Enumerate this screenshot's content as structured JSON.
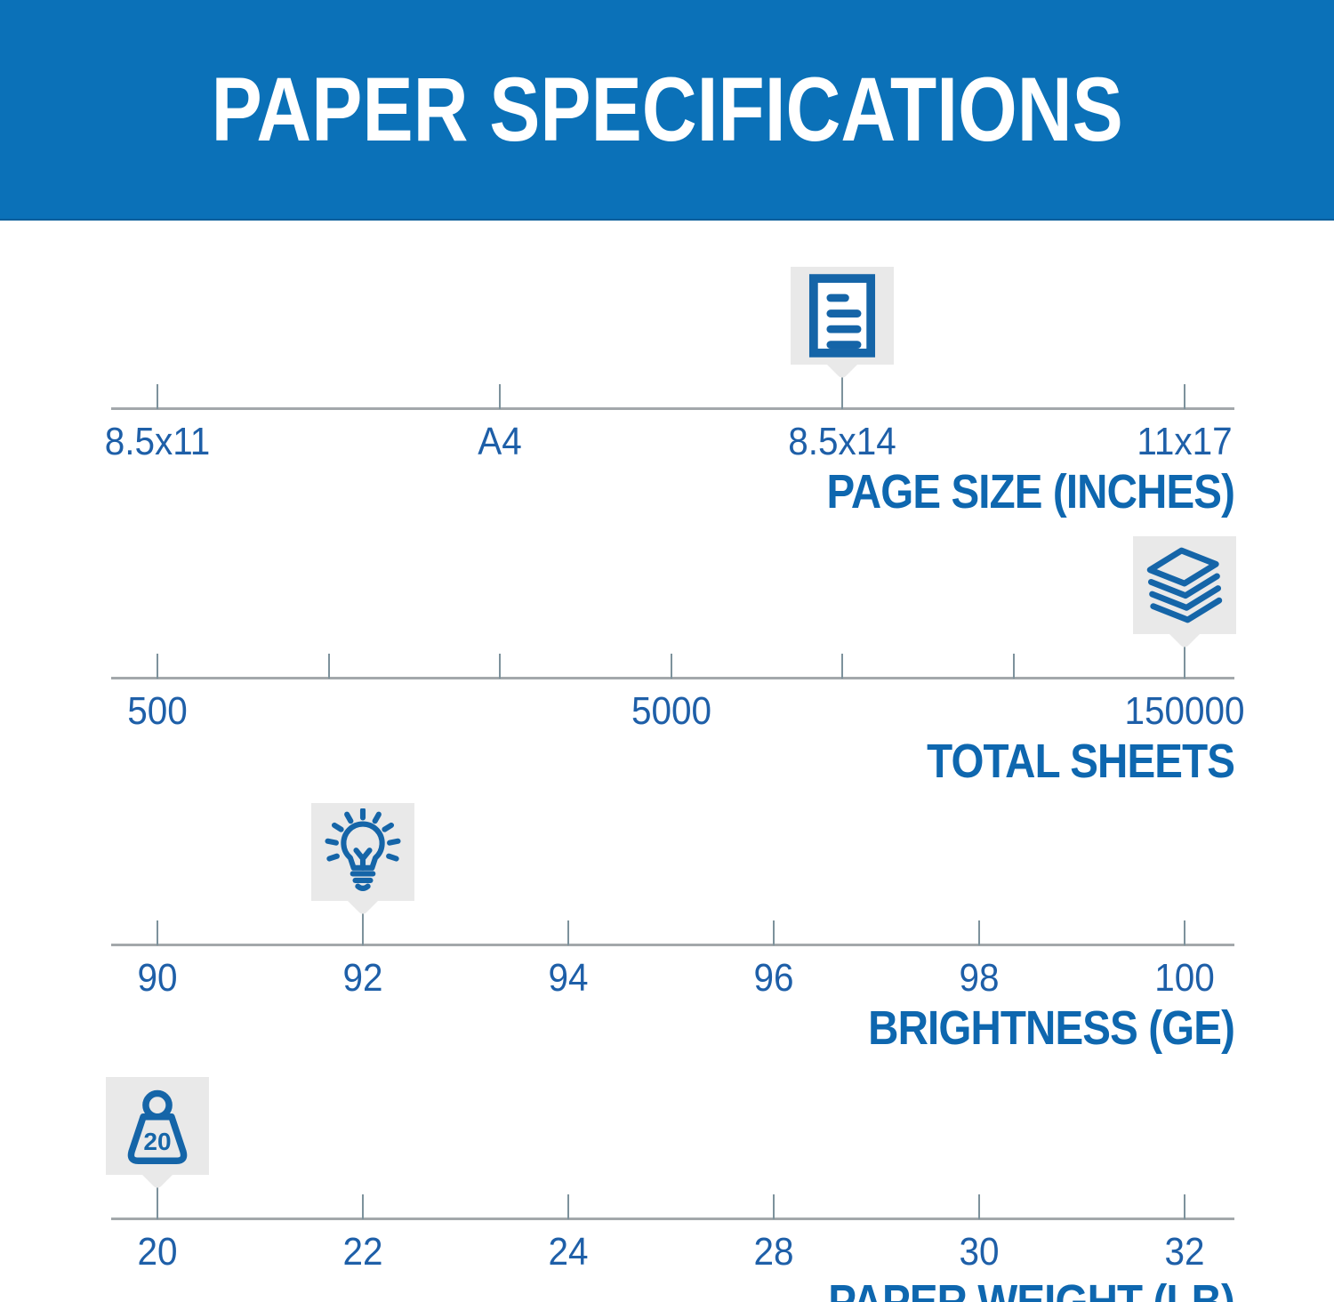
{
  "header": {
    "title": "PAPER SPECIFICATIONS"
  },
  "colors": {
    "banner_blue": "#0b71b8",
    "banner_text": "#ffffff",
    "label_blue": "#1e5fa8",
    "title_blue": "#0e67af",
    "icon_blue": "#1565a8",
    "marker_gray": "#e9e9e9",
    "axis_gray": "#a3a8ab",
    "tick_gray": "#7d929c"
  },
  "chart_data": {
    "type": "scales-infographic",
    "description": "Four horizontal number-line scales, each with a gray callout marker pinned at the product's value",
    "scales": [
      {
        "id": "page-size",
        "title": "PAGE SIZE (INCHES)",
        "ticks": [
          "8.5x11",
          "A4",
          "8.5x14",
          "11x17"
        ],
        "selected_value": "8.5x14",
        "selected_index": 2,
        "marker_icon": "document-icon"
      },
      {
        "id": "total-sheets",
        "title": "TOTAL SHEETS",
        "ticks": [
          "500",
          "",
          "",
          "5000",
          "",
          "",
          "150000"
        ],
        "selected_value": "150000",
        "selected_index": 6,
        "marker_icon": "paper-stack-icon"
      },
      {
        "id": "brightness",
        "title": "BRIGHTNESS (GE)",
        "ticks": [
          "90",
          "92",
          "94",
          "96",
          "98",
          "100"
        ],
        "selected_value": "92",
        "selected_index": 1,
        "marker_icon": "lightbulb-icon"
      },
      {
        "id": "paper-weight",
        "title": "PAPER WEIGHT (LB)",
        "ticks": [
          "20",
          "22",
          "24",
          "28",
          "30",
          "32"
        ],
        "selected_value": "20",
        "selected_index": 0,
        "marker_icon": "weight-icon",
        "marker_label": "20"
      }
    ]
  }
}
